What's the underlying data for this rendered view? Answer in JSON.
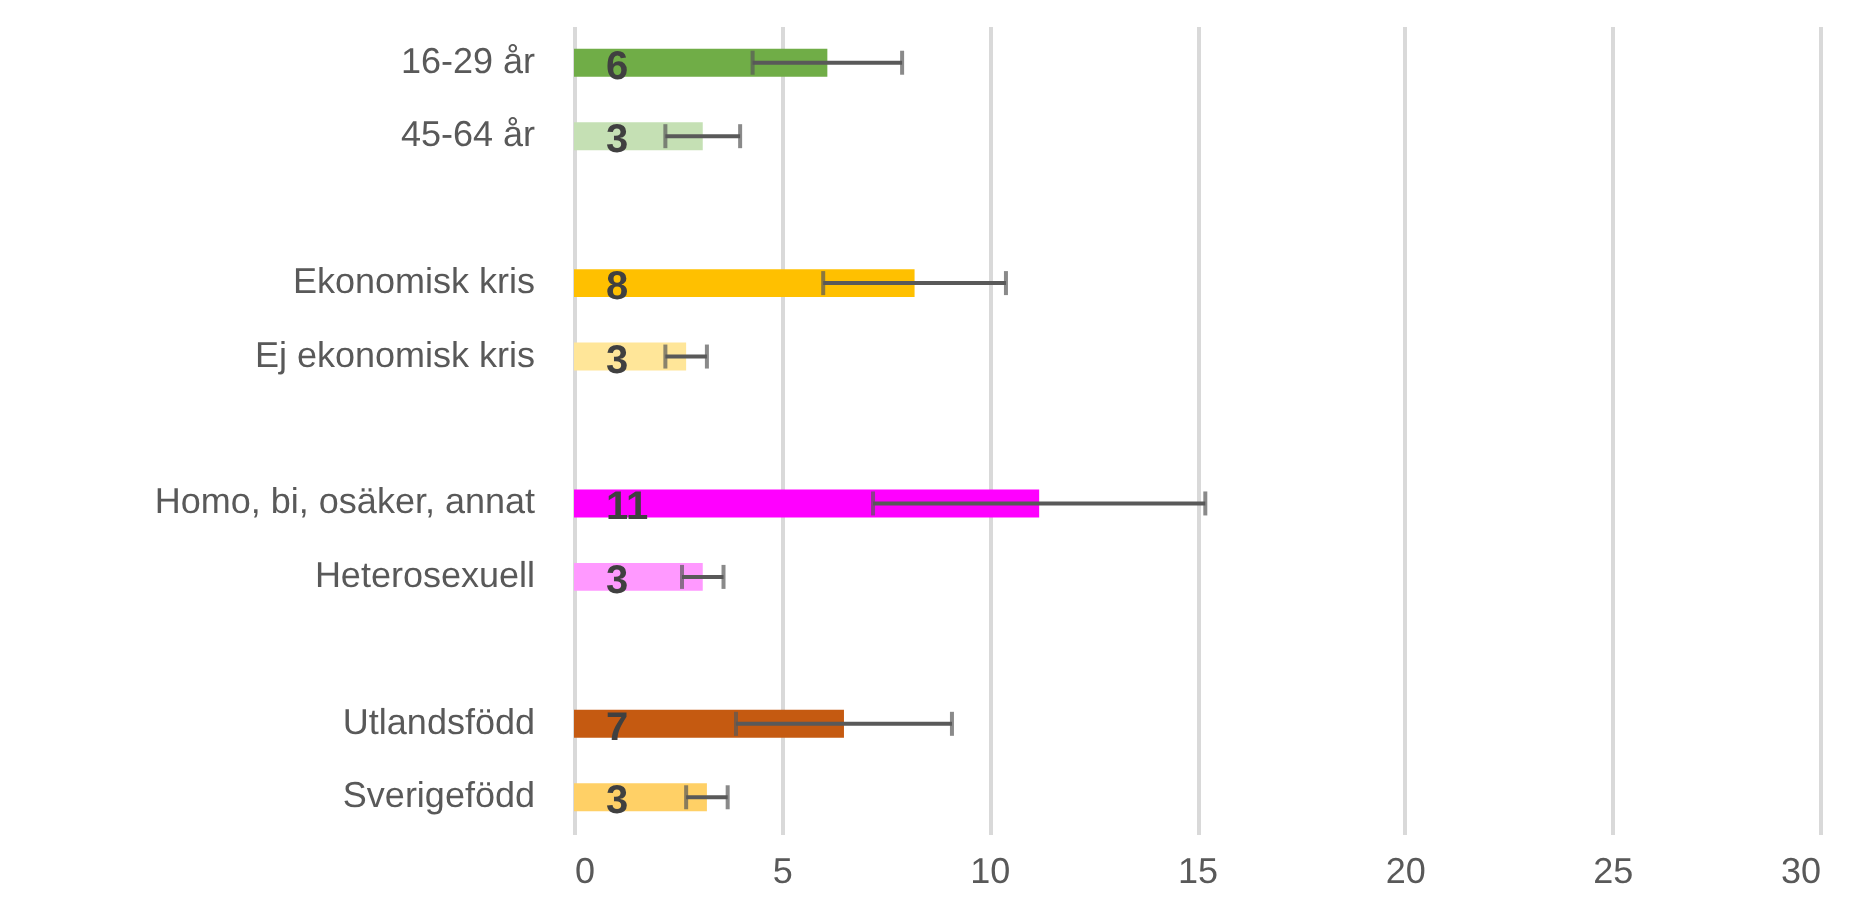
{
  "chart_data": {
    "type": "bar",
    "orientation": "horizontal",
    "categories": [
      "16-29 år",
      "45-64 år",
      null,
      "Ekonomisk kris",
      "Ej ekonomisk kris",
      null,
      "Homo, bi, osäker, annat",
      "Heterosexuell",
      null,
      "Utlandsfödd",
      "Sverigefödd"
    ],
    "values": [
      6.1,
      3.1,
      null,
      8.2,
      2.7,
      null,
      11.2,
      3.1,
      null,
      6.5,
      3.2
    ],
    "colors": [
      "#70ad47",
      "#c5e0b4",
      null,
      "#ffc000",
      "#ffe699",
      null,
      "#ff00ff",
      "#ff99ff",
      null,
      "#c55a11",
      "#ffd066"
    ],
    "errors": [
      [
        4.3,
        7.9
      ],
      [
        2.2,
        4.0
      ],
      null,
      [
        6.0,
        10.4
      ],
      [
        2.2,
        3.2
      ],
      null,
      [
        7.2,
        15.2
      ],
      [
        2.6,
        3.6
      ],
      null,
      [
        3.9,
        9.1
      ],
      [
        2.7,
        3.7
      ]
    ],
    "value_labels": [
      "6",
      "3",
      null,
      "8",
      "3",
      null,
      "11",
      "3",
      null,
      "7",
      "3"
    ],
    "xlim": [
      0,
      30
    ],
    "xticks": [
      0,
      5,
      10,
      15,
      20,
      25,
      30
    ],
    "grid": "x"
  }
}
